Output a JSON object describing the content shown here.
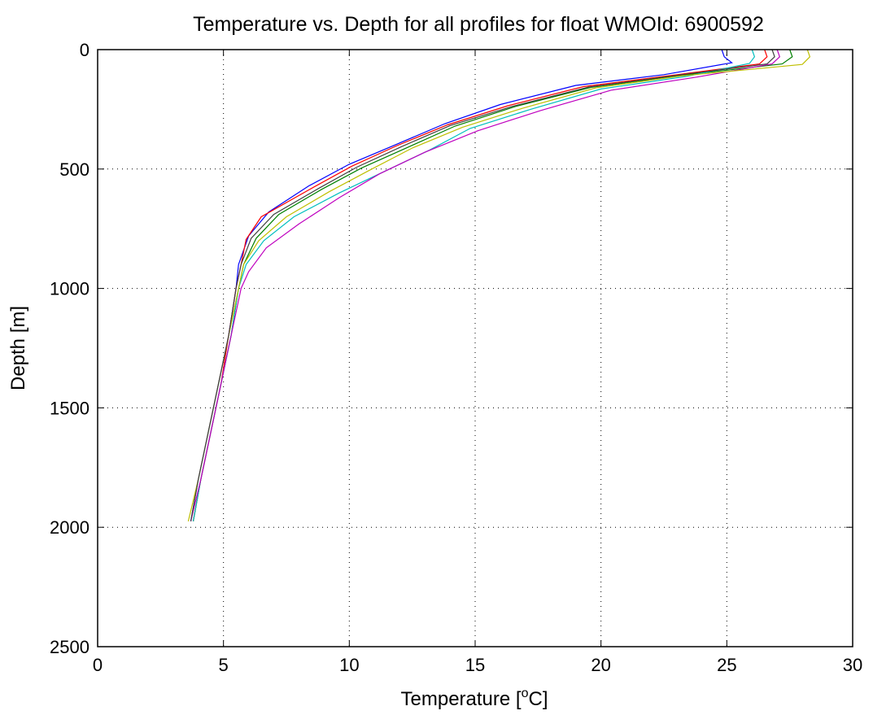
{
  "chart_data": {
    "type": "line",
    "title": "Temperature vs. Depth for all profiles for float WMOId: 6900592",
    "xlabel": "Temperature [",
    "xlabel_sup": "o",
    "xlabel_end": "C]",
    "ylabel": "Depth [m]",
    "xlim": [
      0,
      30
    ],
    "ylim": [
      0,
      2500
    ],
    "y_reversed": true,
    "xticks": [
      0,
      5,
      10,
      15,
      20,
      25,
      30
    ],
    "yticks": [
      0,
      500,
      1000,
      1500,
      2000,
      2500
    ],
    "grid": true,
    "colors": [
      "#0000ff",
      "#008000",
      "#ff0000",
      "#00bfbf",
      "#bf00bf",
      "#bfbf00",
      "#404040"
    ],
    "series": [
      {
        "color": "#0000ff",
        "points": [
          [
            24.8,
            0
          ],
          [
            24.9,
            30
          ],
          [
            25.2,
            55
          ],
          [
            22.5,
            105
          ],
          [
            19.0,
            150
          ],
          [
            16.0,
            230
          ],
          [
            13.8,
            310
          ],
          [
            11.8,
            400
          ],
          [
            10.0,
            480
          ],
          [
            8.4,
            570
          ],
          [
            6.8,
            680
          ],
          [
            6.0,
            780
          ],
          [
            5.6,
            900
          ],
          [
            5.5,
            1000
          ],
          [
            5.2,
            1200
          ],
          [
            4.8,
            1400
          ],
          [
            4.4,
            1600
          ],
          [
            4.0,
            1800
          ],
          [
            3.7,
            1975
          ]
        ]
      },
      {
        "color": "#008000",
        "points": [
          [
            27.5,
            0
          ],
          [
            27.6,
            30
          ],
          [
            27.2,
            60
          ],
          [
            23.0,
            110
          ],
          [
            19.6,
            158
          ],
          [
            16.6,
            238
          ],
          [
            14.2,
            320
          ],
          [
            12.3,
            410
          ],
          [
            10.5,
            495
          ],
          [
            8.9,
            585
          ],
          [
            7.2,
            690
          ],
          [
            6.3,
            790
          ],
          [
            5.8,
            900
          ],
          [
            5.6,
            1000
          ],
          [
            5.3,
            1200
          ],
          [
            4.9,
            1400
          ],
          [
            4.5,
            1600
          ],
          [
            4.1,
            1800
          ],
          [
            3.8,
            1975
          ]
        ]
      },
      {
        "color": "#ff0000",
        "points": [
          [
            26.5,
            0
          ],
          [
            26.6,
            30
          ],
          [
            26.3,
            60
          ],
          [
            22.8,
            108
          ],
          [
            19.3,
            155
          ],
          [
            16.3,
            235
          ],
          [
            13.9,
            315
          ],
          [
            11.9,
            402
          ],
          [
            10.1,
            488
          ],
          [
            8.6,
            575
          ],
          [
            6.5,
            700
          ],
          [
            5.9,
            795
          ],
          [
            5.7,
            900
          ],
          [
            5.5,
            1000
          ],
          [
            5.2,
            1200
          ],
          [
            4.9,
            1400
          ],
          [
            4.5,
            1600
          ],
          [
            4.1,
            1800
          ],
          [
            3.8,
            1975
          ]
        ]
      },
      {
        "color": "#00bfbf",
        "points": [
          [
            26.0,
            0
          ],
          [
            26.1,
            30
          ],
          [
            25.9,
            58
          ],
          [
            23.4,
            112
          ],
          [
            20.0,
            165
          ],
          [
            17.2,
            250
          ],
          [
            14.8,
            330
          ],
          [
            13.2,
            420
          ],
          [
            11.4,
            510
          ],
          [
            9.6,
            600
          ],
          [
            7.8,
            700
          ],
          [
            6.6,
            800
          ],
          [
            5.9,
            900
          ],
          [
            5.6,
            1000
          ],
          [
            5.3,
            1200
          ],
          [
            4.9,
            1400
          ],
          [
            4.5,
            1600
          ],
          [
            4.1,
            1800
          ],
          [
            3.8,
            1975
          ]
        ]
      },
      {
        "color": "#bf00bf",
        "points": [
          [
            27.0,
            0
          ],
          [
            27.1,
            30
          ],
          [
            26.8,
            60
          ],
          [
            23.8,
            115
          ],
          [
            20.4,
            170
          ],
          [
            17.6,
            255
          ],
          [
            15.1,
            340
          ],
          [
            13.0,
            430
          ],
          [
            11.2,
            520
          ],
          [
            9.6,
            620
          ],
          [
            8.0,
            730
          ],
          [
            6.7,
            830
          ],
          [
            6.0,
            930
          ],
          [
            5.7,
            1000
          ],
          [
            5.3,
            1200
          ],
          [
            4.9,
            1400
          ],
          [
            4.5,
            1600
          ],
          [
            4.1,
            1800
          ],
          [
            3.7,
            1975
          ]
        ]
      },
      {
        "color": "#bfbf00",
        "points": [
          [
            28.2,
            0
          ],
          [
            28.3,
            30
          ],
          [
            28.0,
            62
          ],
          [
            23.2,
            110
          ],
          [
            19.8,
            160
          ],
          [
            16.9,
            245
          ],
          [
            14.5,
            325
          ],
          [
            12.5,
            412
          ],
          [
            10.8,
            505
          ],
          [
            9.2,
            595
          ],
          [
            7.5,
            700
          ],
          [
            6.4,
            800
          ],
          [
            5.8,
            900
          ],
          [
            5.6,
            1000
          ],
          [
            5.2,
            1200
          ],
          [
            4.8,
            1400
          ],
          [
            4.4,
            1600
          ],
          [
            4.0,
            1800
          ],
          [
            3.6,
            1975
          ]
        ]
      },
      {
        "color": "#404040",
        "points": [
          [
            26.8,
            0
          ],
          [
            26.9,
            30
          ],
          [
            26.6,
            60
          ],
          [
            23.0,
            108
          ],
          [
            19.5,
            157
          ],
          [
            16.5,
            237
          ],
          [
            14.0,
            318
          ],
          [
            12.1,
            405
          ],
          [
            10.3,
            492
          ],
          [
            8.8,
            580
          ],
          [
            7.0,
            690
          ],
          [
            6.1,
            790
          ],
          [
            5.7,
            900
          ],
          [
            5.5,
            1000
          ],
          [
            5.2,
            1200
          ],
          [
            4.8,
            1400
          ],
          [
            4.4,
            1600
          ],
          [
            4.0,
            1800
          ],
          [
            3.7,
            1975
          ]
        ]
      }
    ]
  }
}
